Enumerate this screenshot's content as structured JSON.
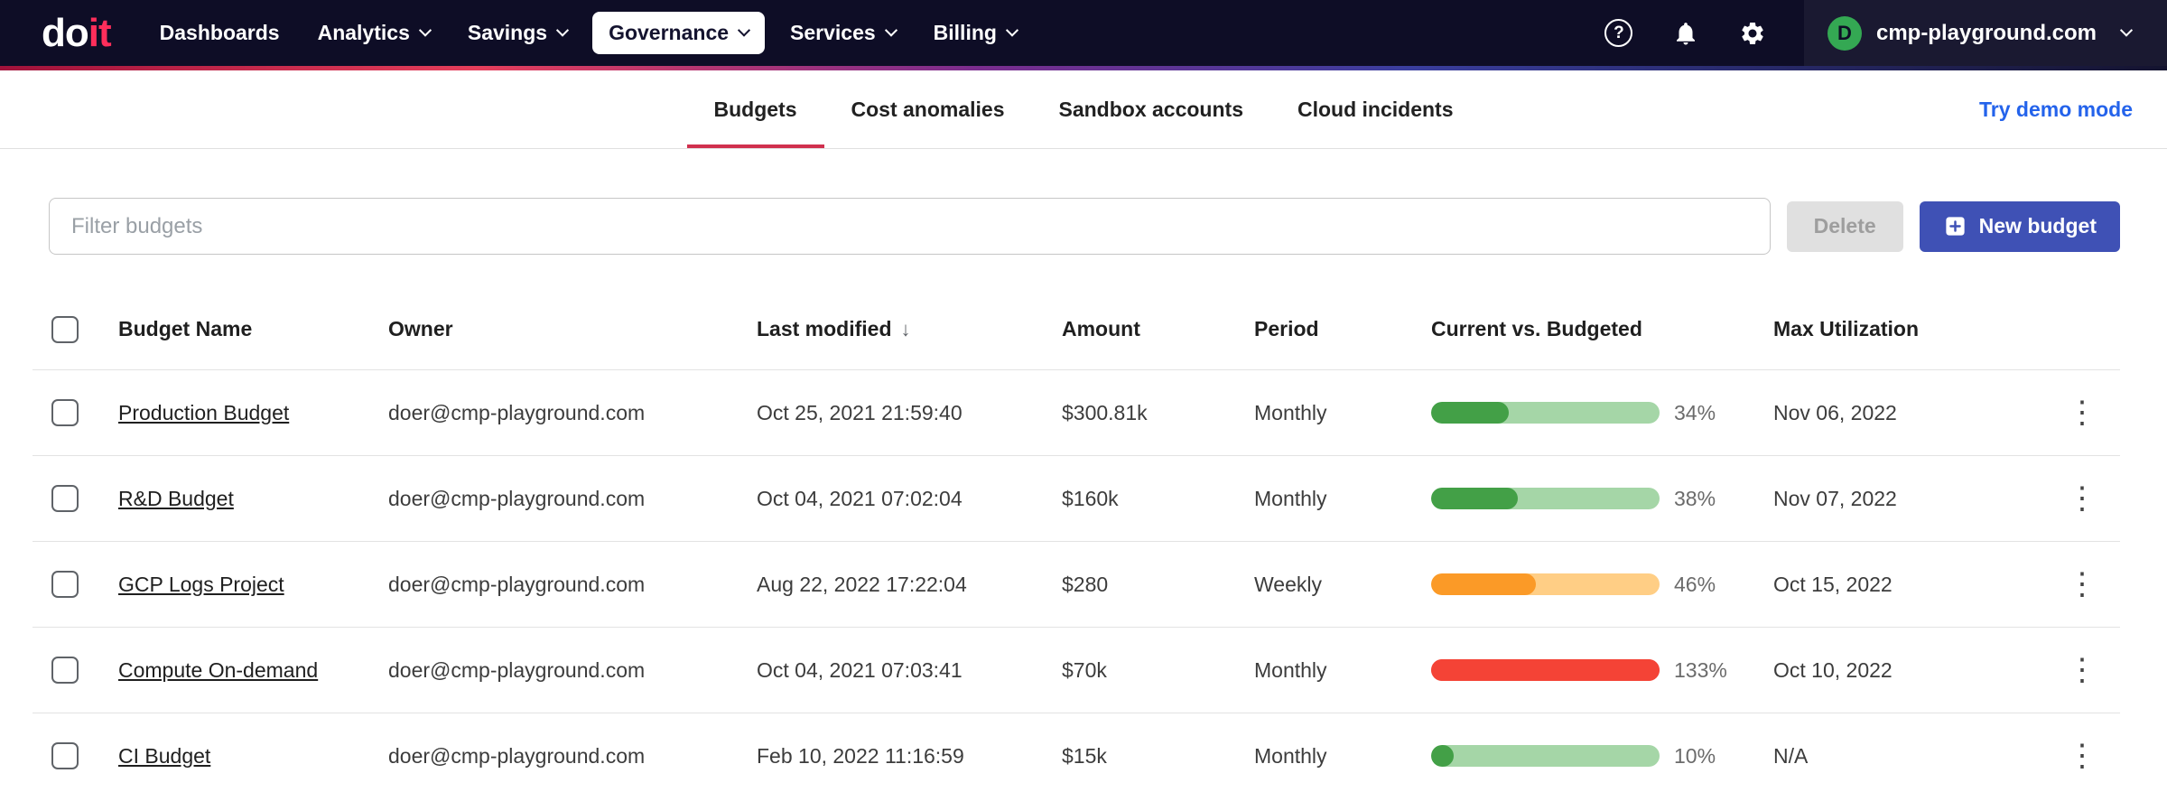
{
  "brand": {
    "logo_do": "do",
    "logo_it": "it"
  },
  "navbar": {
    "items": [
      {
        "label": "Dashboards",
        "has_chevron": false,
        "active": false
      },
      {
        "label": "Analytics",
        "has_chevron": true,
        "active": false
      },
      {
        "label": "Savings",
        "has_chevron": true,
        "active": false
      },
      {
        "label": "Governance",
        "has_chevron": true,
        "active": true
      },
      {
        "label": "Services",
        "has_chevron": true,
        "active": false
      },
      {
        "label": "Billing",
        "has_chevron": true,
        "active": false
      }
    ],
    "help_glyph": "?",
    "account": {
      "avatar_letter": "D",
      "domain": "cmp-playground.com"
    }
  },
  "tabs": {
    "items": [
      {
        "label": "Budgets",
        "active": true
      },
      {
        "label": "Cost anomalies",
        "active": false
      },
      {
        "label": "Sandbox accounts",
        "active": false
      },
      {
        "label": "Cloud incidents",
        "active": false
      }
    ],
    "demo_link": "Try demo mode"
  },
  "toolbar": {
    "filter_placeholder": "Filter budgets",
    "delete_label": "Delete",
    "new_budget_label": "New budget"
  },
  "table": {
    "columns": [
      "Budget Name",
      "Owner",
      "Last modified",
      "Amount",
      "Period",
      "Current vs. Budgeted",
      "Max Utilization"
    ],
    "sorted_column": "Last modified",
    "sort_direction": "desc",
    "rows": [
      {
        "name": "Production Budget",
        "owner": "doer@cmp-playground.com",
        "last_modified": "Oct 25, 2021 21:59:40",
        "amount": "$300.81k",
        "period": "Monthly",
        "percent": "34%",
        "percent_value": 34,
        "bar_color": "green",
        "max_utilization": "Nov 06, 2022"
      },
      {
        "name": "R&D Budget",
        "owner": "doer@cmp-playground.com",
        "last_modified": "Oct 04, 2021 07:02:04",
        "amount": "$160k",
        "period": "Monthly",
        "percent": "38%",
        "percent_value": 38,
        "bar_color": "green",
        "max_utilization": "Nov 07, 2022"
      },
      {
        "name": "GCP Logs Project",
        "owner": "doer@cmp-playground.com",
        "last_modified": "Aug 22, 2022 17:22:04",
        "amount": "$280",
        "period": "Weekly",
        "percent": "46%",
        "percent_value": 46,
        "bar_color": "orange",
        "max_utilization": "Oct 15, 2022"
      },
      {
        "name": "Compute On-demand",
        "owner": "doer@cmp-playground.com",
        "last_modified": "Oct 04, 2021 07:03:41",
        "amount": "$70k",
        "period": "Monthly",
        "percent": "133%",
        "percent_value": 133,
        "bar_color": "red",
        "max_utilization": "Oct 10, 2022"
      },
      {
        "name": "CI Budget",
        "owner": "doer@cmp-playground.com",
        "last_modified": "Feb 10, 2022 11:16:59",
        "amount": "$15k",
        "period": "Monthly",
        "percent": "10%",
        "percent_value": 10,
        "bar_color": "green",
        "max_utilization": "N/A"
      }
    ]
  },
  "colors": {
    "navbar_bg": "#0e0d26",
    "brand_red": "#ff2e5b",
    "tab_underline_red": "#d0304e",
    "link_blue": "#2463eb",
    "button_blue": "#3f51b5",
    "bar_green_fill": "#43a047",
    "bar_green_track": "#a5d6a7",
    "bar_orange_fill": "#fb9a27",
    "bar_orange_track": "#ffce85",
    "bar_red_fill": "#f44336"
  }
}
